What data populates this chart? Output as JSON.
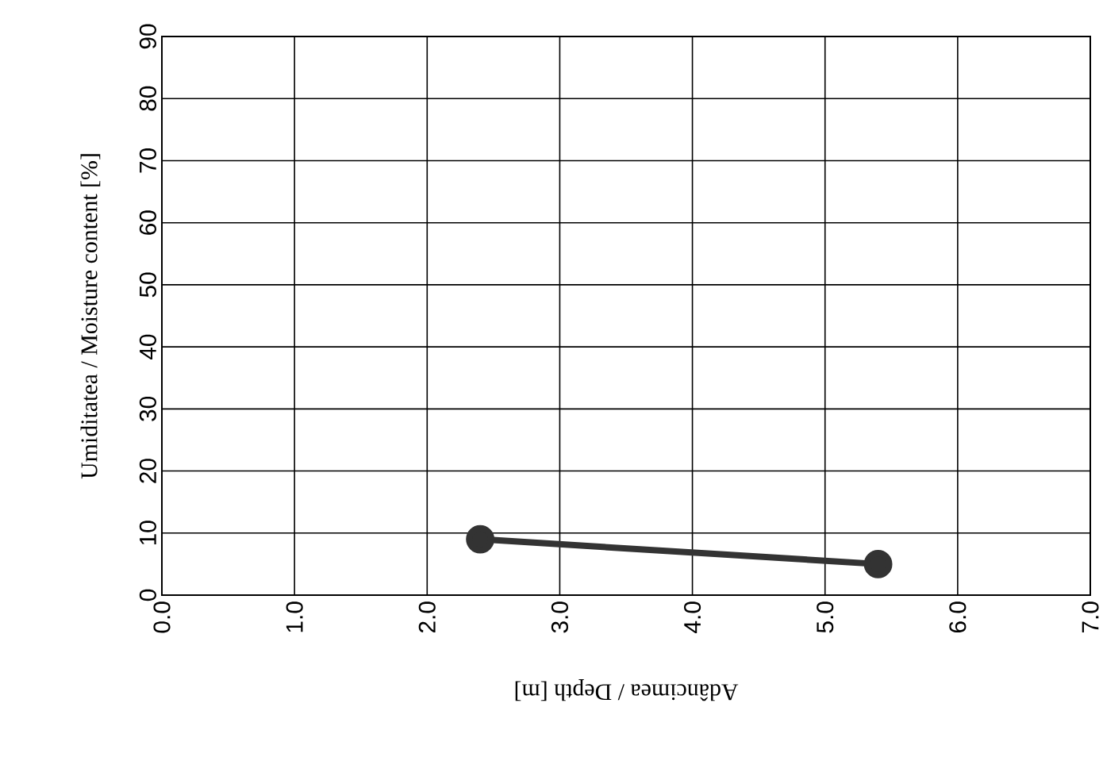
{
  "chart_data": {
    "type": "line",
    "xlabel": "Adâncimea / Depth  [m]",
    "ylabel": "Umiditatea / Moisture content  [%]",
    "x": [
      2.4,
      5.4
    ],
    "series": [
      {
        "color": "#333333",
        "values": [
          9,
          5
        ]
      }
    ],
    "xlim": [
      0,
      7
    ],
    "ylim": [
      0,
      90
    ],
    "xticks": [
      {
        "value": 0,
        "label": "0.0"
      },
      {
        "value": 1,
        "label": "1.0"
      },
      {
        "value": 2,
        "label": "2.0"
      },
      {
        "value": 3,
        "label": "3.0"
      },
      {
        "value": 4,
        "label": "4.0"
      },
      {
        "value": 5,
        "label": "5.0"
      },
      {
        "value": 6,
        "label": "6.0"
      },
      {
        "value": 7,
        "label": "7.0"
      }
    ],
    "yticks": [
      0,
      10,
      20,
      30,
      40,
      50,
      60,
      70,
      80,
      90
    ],
    "grid": true,
    "marker": "circle",
    "line_style": "solid"
  }
}
